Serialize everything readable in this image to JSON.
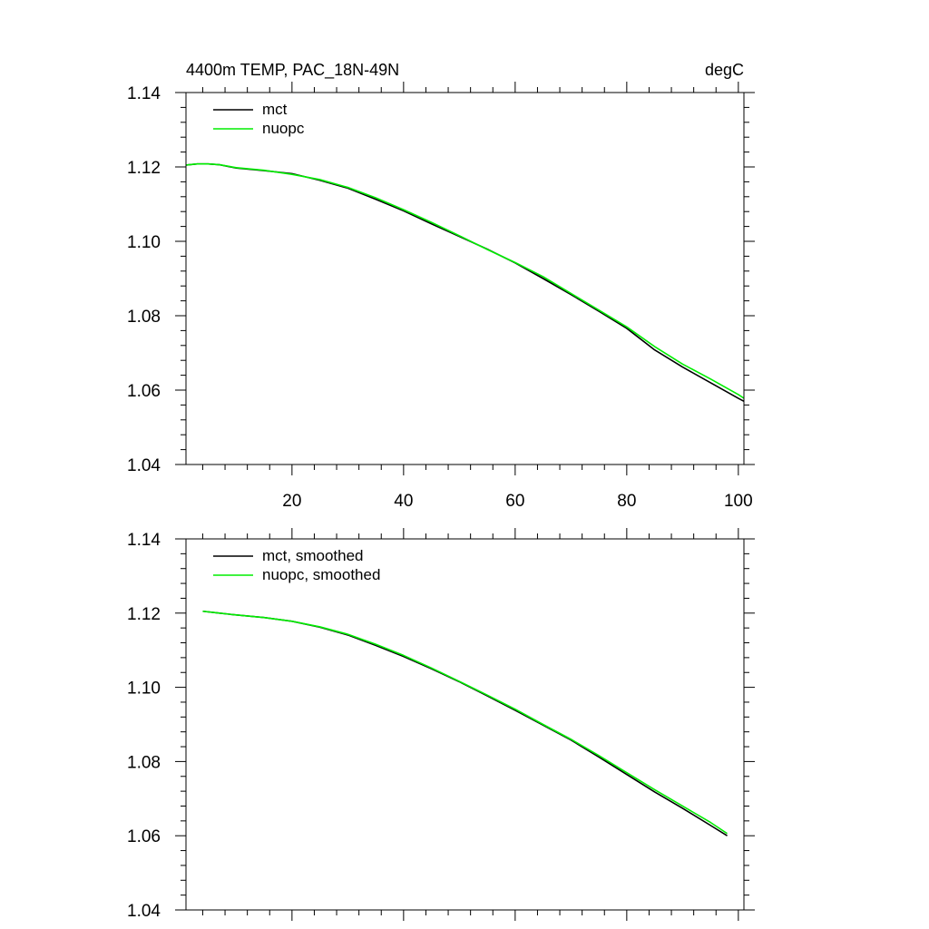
{
  "chart_data": [
    {
      "type": "line",
      "title": "4400m TEMP, PAC_18N-49N",
      "units": "degC",
      "xlim": [
        1,
        101
      ],
      "ylim": [
        1.04,
        1.14
      ],
      "x_ticks": [
        20,
        40,
        60,
        80,
        100
      ],
      "x_tick_labels": [
        "20",
        "40",
        "60",
        "80",
        "100"
      ],
      "y_ticks": [
        1.04,
        1.06,
        1.08,
        1.1,
        1.12,
        1.14
      ],
      "y_tick_labels": [
        "1.04",
        "1.06",
        "1.08",
        "1.10",
        "1.12",
        "1.14"
      ],
      "legend_position": "top-left",
      "x": [
        1,
        3,
        5,
        7,
        10,
        15,
        20,
        25,
        30,
        35,
        40,
        45,
        50,
        55,
        60,
        65,
        70,
        75,
        80,
        85,
        90,
        95,
        100,
        101
      ],
      "series": [
        {
          "name": "mct",
          "color": "#000000",
          "values": [
            1.1205,
            1.1208,
            1.1208,
            1.1206,
            1.1197,
            1.119,
            1.1182,
            1.1164,
            1.1143,
            1.1113,
            1.1082,
            1.1047,
            1.1013,
            1.0979,
            1.0942,
            1.09,
            1.0857,
            1.0812,
            1.0766,
            1.0708,
            1.0662,
            1.062,
            1.0578,
            1.057
          ]
        },
        {
          "name": "nuopc",
          "color": "#00ee00",
          "values": [
            1.1205,
            1.1208,
            1.1208,
            1.1206,
            1.1198,
            1.1191,
            1.118,
            1.1166,
            1.1145,
            1.1117,
            1.1085,
            1.1051,
            1.1015,
            1.0978,
            1.0943,
            1.0905,
            1.086,
            1.0815,
            1.077,
            1.0717,
            1.067,
            1.063,
            1.0588,
            1.0578
          ]
        }
      ]
    },
    {
      "type": "line",
      "xlim": [
        1,
        101
      ],
      "ylim": [
        1.04,
        1.14
      ],
      "x_ticks": [
        20,
        40,
        60,
        80,
        100
      ],
      "y_ticks": [
        1.04,
        1.06,
        1.08,
        1.1,
        1.12,
        1.14
      ],
      "y_tick_labels": [
        "1.04",
        "1.06",
        "1.08",
        "1.10",
        "1.12",
        "1.14"
      ],
      "legend_position": "top-left",
      "x": [
        4,
        7,
        10,
        15,
        20,
        25,
        30,
        35,
        40,
        45,
        50,
        55,
        60,
        65,
        70,
        75,
        80,
        85,
        90,
        95,
        98
      ],
      "series": [
        {
          "name": "mct, smoothed",
          "color": "#000000",
          "values": [
            1.1205,
            1.12,
            1.1195,
            1.1188,
            1.1178,
            1.1162,
            1.1141,
            1.1113,
            1.1083,
            1.105,
            1.1015,
            1.0977,
            1.0938,
            1.0898,
            1.0858,
            1.0812,
            1.0765,
            1.0718,
            1.0674,
            1.0628,
            1.06
          ]
        },
        {
          "name": "nuopc, smoothed",
          "color": "#00ee00",
          "values": [
            1.1205,
            1.12,
            1.1195,
            1.1188,
            1.1178,
            1.1163,
            1.1143,
            1.1116,
            1.1086,
            1.1052,
            1.1016,
            1.0979,
            1.0941,
            1.09,
            1.086,
            1.0816,
            1.077,
            1.0724,
            1.068,
            1.0636,
            1.0606
          ]
        }
      ]
    }
  ]
}
